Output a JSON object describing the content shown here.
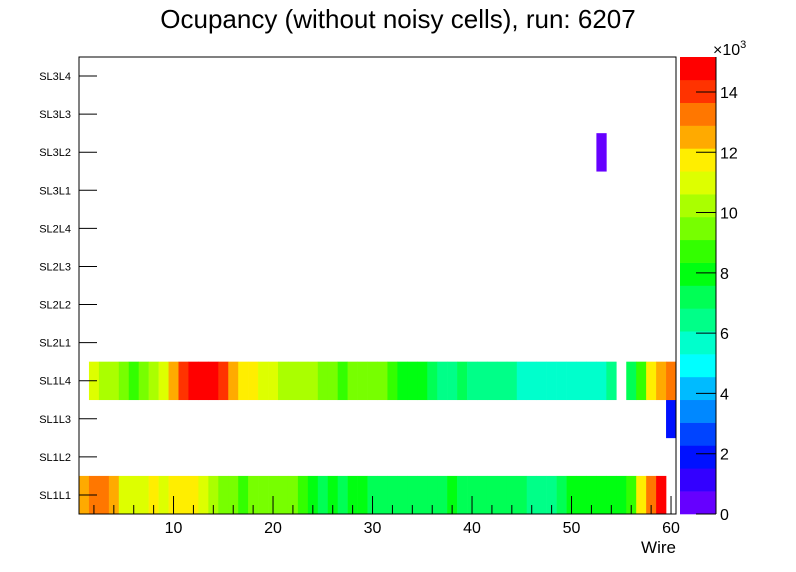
{
  "chart_data": {
    "type": "heatmap",
    "title": "Ocupancy (without noisy cells), run: 6207",
    "xlabel": "Wire",
    "ylabel": "",
    "xlim": [
      0.5,
      60.5
    ],
    "x_ticks": [
      10,
      20,
      30,
      40,
      50,
      60
    ],
    "z_range": [
      0,
      15160
    ],
    "z_multiplier_label": "×10",
    "z_multiplier_exp": "3",
    "z_ticks": [
      0,
      2,
      4,
      6,
      8,
      10,
      12,
      14
    ],
    "palette": [
      "#6600ff",
      "#3300ff",
      "#0011ff",
      "#0044ff",
      "#0088ff",
      "#00bbff",
      "#00ffff",
      "#00ffcc",
      "#00ff88",
      "#00ff55",
      "#00ff11",
      "#33ff00",
      "#77ff00",
      "#aaff00",
      "#ddff00",
      "#ffee00",
      "#ffaa00",
      "#ff7700",
      "#ff3300",
      "#ff0000"
    ],
    "rows": [
      {
        "label": "SL1L1",
        "values": [
          12510,
          13270,
          13270,
          12510,
          10990,
          10990,
          10990,
          11750,
          10990,
          11750,
          11750,
          11750,
          10990,
          10230,
          9480,
          9480,
          8720,
          9480,
          9480,
          9480,
          9480,
          9480,
          8720,
          7960,
          7200,
          7960,
          7200,
          7960,
          7960,
          7200,
          7200,
          7200,
          7200,
          7200,
          7200,
          7200,
          7200,
          7960,
          7200,
          7200,
          7200,
          7200,
          7200,
          7200,
          7200,
          6440,
          6440,
          6440,
          7200,
          7960,
          7960,
          7960,
          7960,
          7960,
          7960,
          8720,
          11750,
          13270,
          14780,
          null
        ]
      },
      {
        "label": "SL1L2",
        "sparse": {}
      },
      {
        "label": "SL1L3",
        "sparse": {
          "60": 1900
        }
      },
      {
        "label": "SL1L4",
        "values": [
          null,
          10990,
          10230,
          10230,
          9480,
          8720,
          9480,
          10230,
          10990,
          12510,
          14020,
          14780,
          14780,
          14780,
          14020,
          12510,
          11750,
          11750,
          10990,
          10990,
          10230,
          10230,
          10230,
          10230,
          9480,
          9480,
          8720,
          9480,
          9480,
          9480,
          9480,
          8720,
          7960,
          7960,
          7960,
          7200,
          6440,
          6440,
          7200,
          6440,
          6440,
          6440,
          6440,
          6440,
          5690,
          5690,
          5690,
          5690,
          5690,
          5690,
          5690,
          5690,
          5690,
          6440,
          null,
          7200,
          8720,
          11750,
          12510,
          13270
        ]
      },
      {
        "label": "SL2L1",
        "sparse": {}
      },
      {
        "label": "SL2L2",
        "sparse": {}
      },
      {
        "label": "SL2L3",
        "sparse": {}
      },
      {
        "label": "SL2L4",
        "sparse": {}
      },
      {
        "label": "SL3L1",
        "sparse": {}
      },
      {
        "label": "SL3L2",
        "sparse": {
          "53": 380
        }
      },
      {
        "label": "SL3L3",
        "sparse": {}
      },
      {
        "label": "SL3L4",
        "sparse": {}
      }
    ]
  }
}
